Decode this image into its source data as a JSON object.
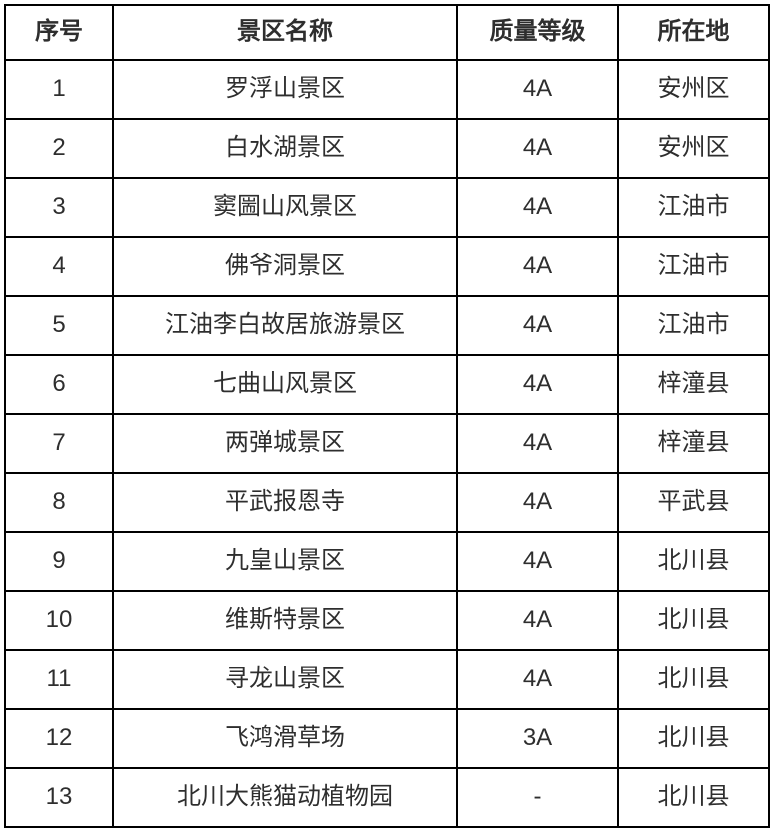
{
  "table": {
    "headers": {
      "no": "序号",
      "name": "景区名称",
      "grade": "质量等级",
      "location": "所在地"
    },
    "rows": [
      {
        "no": "1",
        "name": "罗浮山景区",
        "grade": "4A",
        "location": "安州区"
      },
      {
        "no": "2",
        "name": "白水湖景区",
        "grade": "4A",
        "location": "安州区"
      },
      {
        "no": "3",
        "name": "窦圌山风景区",
        "grade": "4A",
        "location": "江油市"
      },
      {
        "no": "4",
        "name": "佛爷洞景区",
        "grade": "4A",
        "location": "江油市"
      },
      {
        "no": "5",
        "name": "江油李白故居旅游景区",
        "grade": "4A",
        "location": "江油市"
      },
      {
        "no": "6",
        "name": "七曲山风景区",
        "grade": "4A",
        "location": "梓潼县"
      },
      {
        "no": "7",
        "name": "两弹城景区",
        "grade": "4A",
        "location": "梓潼县"
      },
      {
        "no": "8",
        "name": "平武报恩寺",
        "grade": "4A",
        "location": "平武县"
      },
      {
        "no": "9",
        "name": "九皇山景区",
        "grade": "4A",
        "location": "北川县"
      },
      {
        "no": "10",
        "name": "维斯特景区",
        "grade": "4A",
        "location": "北川县"
      },
      {
        "no": "11",
        "name": "寻龙山景区",
        "grade": "4A",
        "location": "北川县"
      },
      {
        "no": "12",
        "name": "飞鸿滑草场",
        "grade": "3A",
        "location": "北川县"
      },
      {
        "no": "13",
        "name": "北川大熊猫动植物园",
        "grade": "-",
        "location": "北川县"
      }
    ],
    "colors": {
      "border": "#000000",
      "text": "#2e2e2e",
      "background": "#ffffff"
    }
  }
}
